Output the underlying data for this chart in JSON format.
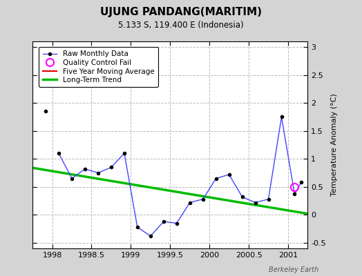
{
  "title": "UJUNG PANDANG(MARITIM)",
  "subtitle": "5.133 S, 119.400 E (Indonesia)",
  "ylabel": "Temperature Anomaly (°C)",
  "watermark": "Berkeley Earth",
  "xlim": [
    1997.75,
    2001.25
  ],
  "ylim": [
    -0.6,
    3.1
  ],
  "yticks": [
    -0.5,
    0.0,
    0.5,
    1.0,
    1.5,
    2.0,
    2.5,
    3.0
  ],
  "xticks": [
    1998,
    1998.5,
    1999,
    1999.5,
    2000,
    2000.5,
    2001
  ],
  "bg_color": "#d4d4d4",
  "plot_bg_color": "#ffffff",
  "isolated_x": [
    1997.917
  ],
  "isolated_y": [
    1.85
  ],
  "raw_x": [
    1998.083,
    1998.25,
    1998.417,
    1998.583,
    1998.75,
    1998.917,
    1999.083,
    1999.25,
    1999.417,
    1999.583,
    1999.75,
    1999.917,
    2000.083,
    2000.25,
    2000.417,
    2000.583,
    2000.75,
    2000.917,
    2001.083,
    2001.167
  ],
  "raw_y": [
    1.1,
    0.65,
    0.82,
    0.75,
    0.85,
    1.1,
    -0.22,
    -0.38,
    -0.12,
    -0.15,
    0.22,
    0.28,
    0.65,
    0.72,
    0.32,
    0.22,
    0.28,
    1.75,
    0.37,
    0.58
  ],
  "qc_fail_x": [
    2001.083
  ],
  "qc_fail_y": [
    0.5
  ],
  "trend_x": [
    1997.75,
    2001.25
  ],
  "trend_y": [
    0.84,
    0.02
  ],
  "raw_color": "#4444ff",
  "marker_color": "#000000",
  "qc_color": "#ff00ff",
  "trend_color": "#00bb00",
  "moving_avg_color": "#dd0000",
  "grid_color": "#bbbbbb"
}
